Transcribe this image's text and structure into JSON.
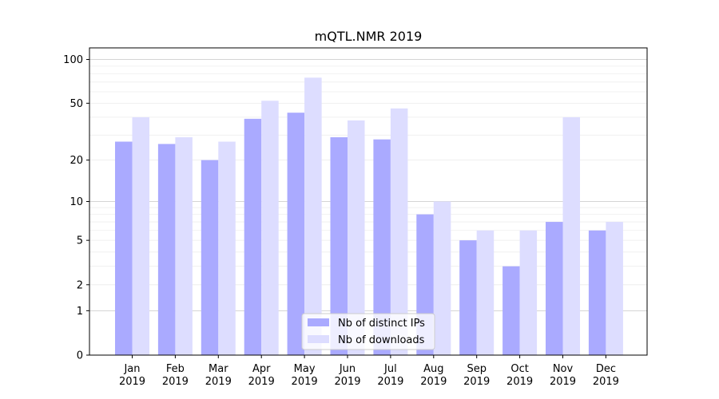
{
  "chart_data": {
    "type": "bar",
    "title": "mQTL.NMR 2019",
    "xlabel": "",
    "ylabel": "",
    "yscale": "symlog",
    "ylim": [
      0,
      120
    ],
    "yticks": [
      0,
      1,
      2,
      5,
      10,
      20,
      50,
      100
    ],
    "ytick_labels": [
      "0",
      "1",
      "2",
      "5",
      "10",
      "20",
      "50",
      "100"
    ],
    "grid": "horizontal",
    "legend_position": "bottom-center",
    "categories": [
      [
        "Jan",
        "2019"
      ],
      [
        "Feb",
        "2019"
      ],
      [
        "Mar",
        "2019"
      ],
      [
        "Apr",
        "2019"
      ],
      [
        "May",
        "2019"
      ],
      [
        "Jun",
        "2019"
      ],
      [
        "Jul",
        "2019"
      ],
      [
        "Aug",
        "2019"
      ],
      [
        "Sep",
        "2019"
      ],
      [
        "Oct",
        "2019"
      ],
      [
        "Nov",
        "2019"
      ],
      [
        "Dec",
        "2019"
      ]
    ],
    "series": [
      {
        "name": "Nb of distinct IPs",
        "color": "#aaaaff",
        "values": [
          27,
          26,
          20,
          39,
          43,
          29,
          28,
          8,
          5,
          3,
          7,
          6
        ]
      },
      {
        "name": "Nb of downloads",
        "color": "#ddddff",
        "values": [
          40,
          29,
          27,
          52,
          75,
          38,
          46,
          10,
          6,
          6,
          40,
          7
        ]
      }
    ]
  }
}
